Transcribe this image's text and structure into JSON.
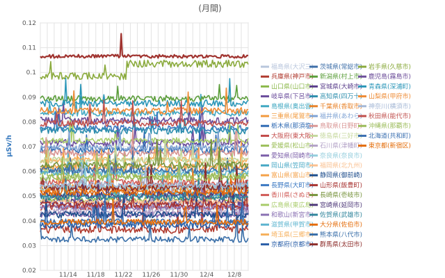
{
  "chart_data": {
    "type": "line",
    "title": "(月間)",
    "xlabel": "",
    "ylabel": "μSv/h",
    "ylim": [
      0.02,
      0.12
    ],
    "yticks": [
      "0.02",
      "0.03",
      "0.04",
      "0.05",
      "0.06",
      "0.07",
      "0.08",
      "0.09",
      "0.1",
      "0.11",
      "0.12"
    ],
    "x_range": [
      "11/10",
      "12/10"
    ],
    "xticks": [
      {
        "day": 4,
        "label": "11/14"
      },
      {
        "day": 8,
        "label": "11/18"
      },
      {
        "day": 12,
        "label": "11/22"
      },
      {
        "day": 16,
        "label": "11/26"
      },
      {
        "day": 20,
        "label": "11/30"
      },
      {
        "day": 24,
        "label": "12/4"
      },
      {
        "day": 28,
        "label": "12/8"
      }
    ],
    "grid": true,
    "legend_position": "right",
    "series": [
      {
        "name": "福島県(大沢三)",
        "color": "#b8c6dc",
        "level": 0.0455,
        "noise": 0.0012,
        "spikes": 4,
        "shift": null
      },
      {
        "name": "兵庫県(神戸市)",
        "color": "#b03a2e",
        "level": 0.0365,
        "noise": 0.0015,
        "spikes": 6,
        "shift": null
      },
      {
        "name": "山口県(山口市)",
        "color": "#8bb84a",
        "level": 0.0485,
        "noise": 0.0012,
        "spikes": 5,
        "shift": null
      },
      {
        "name": "岐阜県(下呂市)",
        "color": "#6a4c9c",
        "level": 0.0715,
        "noise": 0.0014,
        "spikes": 6,
        "shift": null
      },
      {
        "name": "島根県(奥出雲)",
        "color": "#3fa7c1",
        "level": 0.0835,
        "noise": 0.0012,
        "spikes": 4,
        "shift": null
      },
      {
        "name": "三重県(尾鷲市)",
        "color": "#f29a3d",
        "level": 0.0535,
        "noise": 0.0014,
        "spikes": 6,
        "shift": null
      },
      {
        "name": "栃木県(那須塩)",
        "color": "#2f6ab3",
        "level": 0.0685,
        "noise": 0.0014,
        "spikes": 6,
        "shift": null
      },
      {
        "name": "大阪府(東大阪)",
        "color": "#c24a48",
        "level": 0.0455,
        "noise": 0.0012,
        "spikes": 5,
        "shift": null
      },
      {
        "name": "愛媛県(松山市)",
        "color": "#9cbf5a",
        "level": 0.0585,
        "noise": 0.0012,
        "spikes": 5,
        "shift": null
      },
      {
        "name": "愛知県(岡崎市)",
        "color": "#7b5ea8",
        "level": 0.0425,
        "noise": 0.0012,
        "spikes": 4,
        "shift": null
      },
      {
        "name": "岡山県(笠岡市)",
        "color": "#45a7c4",
        "level": 0.0505,
        "noise": 0.0012,
        "spikes": 5,
        "shift": null
      },
      {
        "name": "富山県(富山市)",
        "color": "#f4a24a",
        "level": 0.0615,
        "noise": 0.0016,
        "spikes": 8,
        "shift": null
      },
      {
        "name": "長野県(大町市)",
        "color": "#3b78c2",
        "level": 0.0775,
        "noise": 0.0012,
        "spikes": 4,
        "shift": null
      },
      {
        "name": "香川県(さぬき)",
        "color": "#d05b57",
        "level": 0.0555,
        "noise": 0.0012,
        "spikes": 5,
        "shift": null
      },
      {
        "name": "広島県(東広島)",
        "color": "#a9cc6b",
        "level": 0.0725,
        "noise": 0.0012,
        "spikes": 5,
        "shift": null
      },
      {
        "name": "和歌山(新宮市)",
        "color": "#8a71b3",
        "level": 0.0455,
        "noise": 0.0012,
        "spikes": 4,
        "shift": null
      },
      {
        "name": "滋賀県(甲賀市)",
        "color": "#5cb4cf",
        "level": 0.0595,
        "noise": 0.0012,
        "spikes": 5,
        "shift": null
      },
      {
        "name": "埼玉県(三郷市)",
        "color": "#f6b05c",
        "level": 0.0645,
        "noise": 0.0012,
        "spikes": 5,
        "shift": null
      },
      {
        "name": "京都府(京都市)",
        "color": "#2a5fa8",
        "level": 0.0385,
        "noise": 0.0015,
        "spikes": 8,
        "shift": null
      },
      {
        "name": "茨城県(常総市)",
        "color": "#3e6fa8",
        "level": 0.0605,
        "noise": 0.0014,
        "spikes": 6,
        "shift": null
      },
      {
        "name": "新潟県(村上市)",
        "color": "#5b9e3a",
        "level": 0.0895,
        "noise": 0.0012,
        "spikes": 3,
        "shift": null
      },
      {
        "name": "宮城県(大崎市)",
        "color": "#5b3f8c",
        "level": 0.0475,
        "noise": 0.0012,
        "spikes": 4,
        "shift": null
      },
      {
        "name": "高知県(四万十)",
        "color": "#2f8fae",
        "level": 0.0765,
        "noise": 0.0014,
        "spikes": 5,
        "shift": null
      },
      {
        "name": "千葉県(香取市)",
        "color": "#e8832a",
        "level": 0.0525,
        "noise": 0.0013,
        "spikes": 5,
        "shift": null
      },
      {
        "name": "福井県(あわら)",
        "color": "#7fa3d4",
        "level": 0.0695,
        "noise": 0.0013,
        "spikes": 5,
        "shift": null
      },
      {
        "name": "鳥取県(日野町)",
        "color": "#d99694",
        "level": 0.0675,
        "noise": 0.0013,
        "spikes": 5,
        "shift": null
      },
      {
        "name": "徳島県(三好市)",
        "color": "#c4d79b",
        "level": 0.0645,
        "noise": 0.0013,
        "spikes": 5,
        "shift": null
      },
      {
        "name": "石川県(津幡町)",
        "color": "#b3a2c7",
        "level": 0.0435,
        "noise": 0.0012,
        "spikes": 4,
        "shift": null
      },
      {
        "name": "奈良県(奈良市)",
        "color": "#93cddd",
        "level": 0.0535,
        "noise": 0.0012,
        "spikes": 4,
        "shift": null
      },
      {
        "name": "福岡県(北九州)",
        "color": "#fac090",
        "level": 0.0475,
        "noise": 0.0012,
        "spikes": 4,
        "shift": null
      },
      {
        "name": "静岡県(御前崎)",
        "color": "#1f4e8c",
        "level": 0.0425,
        "noise": 0.0013,
        "spikes": 5,
        "shift": null
      },
      {
        "name": "山形県(飯豊町)",
        "color": "#a83432",
        "level": 0.0465,
        "noise": 0.0013,
        "spikes": 6,
        "shift": null
      },
      {
        "name": "長崎県(壱岐市)",
        "color": "#77933c",
        "level": 0.0625,
        "noise": 0.0013,
        "spikes": 5,
        "shift": null
      },
      {
        "name": "宮崎県(延岡市)",
        "color": "#4f3a7a",
        "level": 0.0505,
        "noise": 0.0013,
        "spikes": 5,
        "shift": null
      },
      {
        "name": "佐賀県(武雄市)",
        "color": "#31859c",
        "level": 0.0495,
        "noise": 0.0012,
        "spikes": 4,
        "shift": null
      },
      {
        "name": "大分県(佐伯市)",
        "color": "#e46c0a",
        "level": 0.0515,
        "noise": 0.0013,
        "spikes": 5,
        "shift": null
      },
      {
        "name": "熊本県(八代市)",
        "color": "#386ea8",
        "level": 0.0325,
        "noise": 0.0012,
        "spikes": 5,
        "shift": null
      },
      {
        "name": "群馬県(太田市)",
        "color": "#8e2f2c",
        "level": 0.0535,
        "noise": 0.0013,
        "spikes": 6,
        "shift": null
      },
      {
        "name": "岩手県(久慈市)",
        "color": "#8aaa3c",
        "level": 0.0985,
        "noise": 0.0015,
        "spikes": 2,
        "shift": {
          "day": 12.5,
          "to": 0.1035
        }
      },
      {
        "name": "鹿児島(霧島市)",
        "color": "#6c4e9a",
        "level": 0.0805,
        "noise": 0.0014,
        "spikes": 5,
        "shift": null
      },
      {
        "name": "青森県(深浦町)",
        "color": "#2a96b8",
        "level": 0.0875,
        "noise": 0.0013,
        "spikes": 4,
        "shift": null
      },
      {
        "name": "山梨県(甲府市)",
        "color": "#ee8b35",
        "level": 0.0845,
        "noise": 0.0013,
        "spikes": 4,
        "shift": null
      },
      {
        "name": "神奈川(横須市)",
        "color": "#a5b8d6",
        "level": 0.0545,
        "noise": 0.0012,
        "spikes": 4,
        "shift": null
      },
      {
        "name": "秋田県(能代市)",
        "color": "#c0504d",
        "level": 0.0795,
        "noise": 0.0013,
        "spikes": 5,
        "shift": null
      },
      {
        "name": "沖縄県(那覇市)",
        "color": "#9bbb59",
        "level": 0.0575,
        "noise": 0.0013,
        "spikes": 5,
        "shift": null
      },
      {
        "name": "北海道(共和町)",
        "color": "#3a6fb0",
        "level": 0.0395,
        "noise": 0.0013,
        "spikes": 5,
        "shift": null
      },
      {
        "name": "東京都(新宿区)",
        "color": "#e36c09",
        "level": 0.0395,
        "noise": 0.0012,
        "spikes": 4,
        "shift": null
      },
      {
        "name": "",
        "color": "#a0332f",
        "level": 0.1065,
        "noise": 0.0007,
        "spikes": 1,
        "shift": null
      }
    ]
  }
}
